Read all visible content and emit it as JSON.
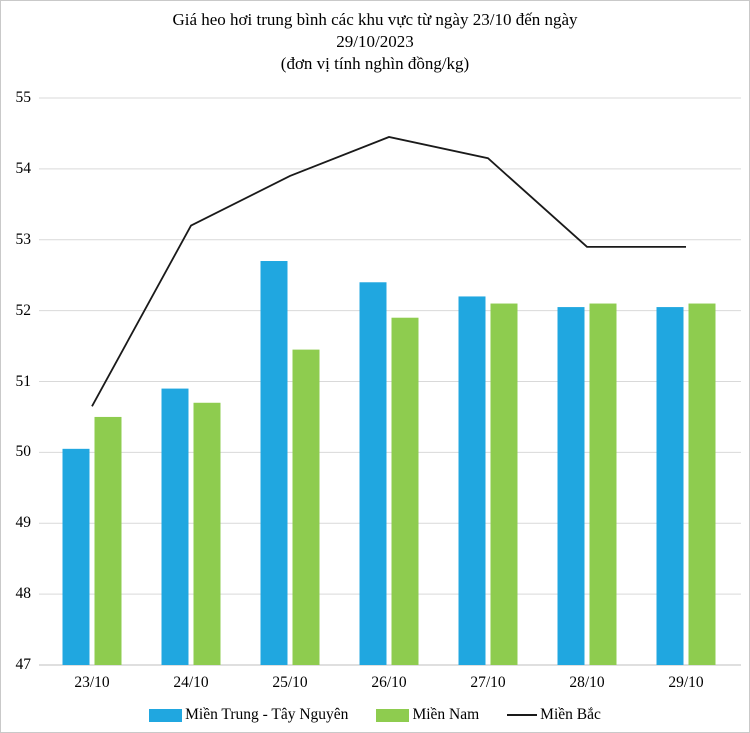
{
  "title": {
    "line1": "Giá heo hơi trung bình các khu vực từ ngày 23/10 đến ngày",
    "line2": "29/10/2023",
    "line3": "(đơn vị tính nghìn đồng/kg)"
  },
  "legend": [
    {
      "label": "Miền Trung - Tây Nguyên",
      "swatch": "bar",
      "color": "#20a7e0"
    },
    {
      "label": "Miền Nam",
      "swatch": "bar",
      "color": "#8ecc4f"
    },
    {
      "label": "Miền Bắc",
      "swatch": "line",
      "color": "#1a1a1a"
    }
  ],
  "chart_data": {
    "type": "bar",
    "subtype": "grouped bars + overlay line",
    "title": "Giá heo hơi trung bình các khu vực từ ngày 23/10 đến ngày 29/10/2023 (đơn vị tính nghìn đồng/kg)",
    "categories": [
      "23/10",
      "24/10",
      "25/10",
      "26/10",
      "27/10",
      "28/10",
      "29/10"
    ],
    "series": [
      {
        "name": "Miền Trung - Tây Nguyên",
        "type": "bar",
        "color": "#20a7e0",
        "values": [
          50.05,
          50.9,
          52.7,
          52.4,
          52.2,
          52.05,
          52.05
        ]
      },
      {
        "name": "Miền Nam",
        "type": "bar",
        "color": "#8ecc4f",
        "values": [
          50.5,
          50.7,
          51.45,
          51.9,
          52.1,
          52.1,
          52.1
        ]
      },
      {
        "name": "Miền Bắc",
        "type": "line",
        "color": "#1a1a1a",
        "values": [
          50.65,
          53.2,
          53.9,
          54.45,
          54.15,
          52.9,
          52.9
        ]
      }
    ],
    "xlabel": "",
    "ylabel": "",
    "ylim": [
      47,
      55
    ],
    "yticks": [
      47,
      48,
      49,
      50,
      51,
      52,
      53,
      54,
      55
    ],
    "grid": true,
    "gridline_color": "#d9d9d9",
    "axis_line_color": "#bfbfbf",
    "legend_position": "bottom"
  }
}
